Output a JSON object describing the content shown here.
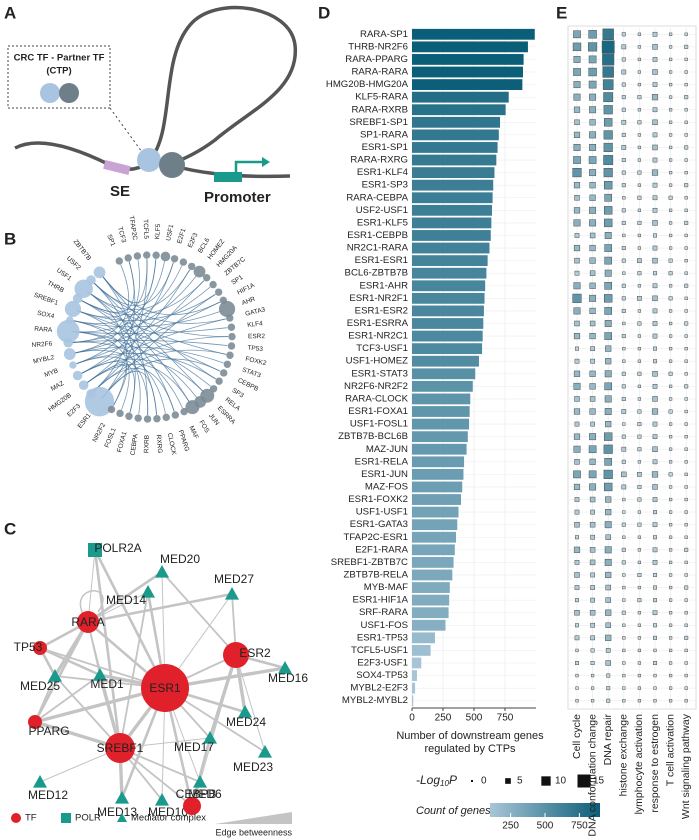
{
  "panel_labels": [
    "A",
    "B",
    "C",
    "D",
    "E"
  ],
  "panel_a": {
    "box_title": [
      "CRC TF - Partner TF",
      "(CTP)"
    ],
    "se_label": "SE",
    "promoter_label": "Promoter"
  },
  "panel_b": {
    "sources": [
      {
        "label": "ESR1",
        "size": 12
      },
      {
        "label": "E2F3",
        "size": 3
      },
      {
        "label": "HMG20B",
        "size": 3
      },
      {
        "label": "MAZ",
        "size": 3
      },
      {
        "label": "MYB",
        "size": 2
      },
      {
        "label": "MYBL2",
        "size": 4
      },
      {
        "label": "NR2F6",
        "size": 3
      },
      {
        "label": "RARA",
        "size": 9
      },
      {
        "label": "SOX4",
        "size": 2
      },
      {
        "label": "SREBF1",
        "size": 6
      },
      {
        "label": "THRB",
        "size": 3
      },
      {
        "label": "USF1",
        "size": 7
      },
      {
        "label": "USF2",
        "size": 3
      },
      {
        "label": "ZBTB7B",
        "size": 4
      }
    ],
    "targets": [
      {
        "label": "SP1",
        "size": 2
      },
      {
        "label": "TCF3",
        "size": 2
      },
      {
        "label": "TFAP2C",
        "size": 2
      },
      {
        "label": "TCFL5",
        "size": 2
      },
      {
        "label": "KLF5",
        "size": 2
      },
      {
        "label": "USF1",
        "size": 3
      },
      {
        "label": "E2F1",
        "size": 2
      },
      {
        "label": "E2F3",
        "size": 2
      },
      {
        "label": "BCL6",
        "size": 2
      },
      {
        "label": "HOMEZ",
        "size": 4
      },
      {
        "label": "HMG20A",
        "size": 2
      },
      {
        "label": "ZBTB7C",
        "size": 2
      },
      {
        "label": "SP1",
        "size": 2
      },
      {
        "label": "HIF1A",
        "size": 2
      },
      {
        "label": "AHR",
        "size": 6
      },
      {
        "label": "GATA3",
        "size": 2
      },
      {
        "label": "KLF4",
        "size": 2
      },
      {
        "label": "ESR2",
        "size": 2
      },
      {
        "label": "TP53",
        "size": 2
      },
      {
        "label": "FOXK2",
        "size": 2
      },
      {
        "label": "STAT3",
        "size": 2
      },
      {
        "label": "CEBPB",
        "size": 2
      },
      {
        "label": "SP3",
        "size": 2
      },
      {
        "label": "RELA",
        "size": 2
      },
      {
        "label": "ESRRA",
        "size": 5
      },
      {
        "label": "JUN",
        "size": 4
      },
      {
        "label": "FOS",
        "size": 5
      },
      {
        "label": "MAF",
        "size": 2
      },
      {
        "label": "PPARG",
        "size": 2
      },
      {
        "label": "CLOCK",
        "size": 2
      },
      {
        "label": "RXRG",
        "size": 2
      },
      {
        "label": "RXRB",
        "size": 2
      },
      {
        "label": "CEBPA",
        "size": 2
      },
      {
        "label": "FOXA1",
        "size": 2
      },
      {
        "label": "FOSL1",
        "size": 2
      },
      {
        "label": "NR2F2",
        "size": 2
      }
    ]
  },
  "panel_c": {
    "nodes": [
      {
        "label": "POLR2A",
        "group": 1
      },
      {
        "label": "MED20",
        "group": 2
      },
      {
        "label": "MED14",
        "group": 2
      },
      {
        "label": "MED27",
        "group": 2
      },
      {
        "label": "RARA",
        "group": 0
      },
      {
        "label": "TP53",
        "group": 0
      },
      {
        "label": "ESR2",
        "group": 0
      },
      {
        "label": "MED16",
        "group": 2
      },
      {
        "label": "MED25",
        "group": 2
      },
      {
        "label": "MED1",
        "group": 2
      },
      {
        "label": "ESR1",
        "group": 0
      },
      {
        "label": "MED24",
        "group": 2
      },
      {
        "label": "PPARG",
        "group": 0
      },
      {
        "label": "MED17",
        "group": 2
      },
      {
        "label": "SREBF1",
        "group": 0
      },
      {
        "label": "MED23",
        "group": 2
      },
      {
        "label": "MED12",
        "group": 2
      },
      {
        "label": "MED6",
        "group": 2
      },
      {
        "label": "MED13",
        "group": 2
      },
      {
        "label": "MED10",
        "group": 2
      },
      {
        "label": "CEBPB",
        "group": 0
      }
    ],
    "legend": [
      "TF",
      "POLR",
      "Mediator complex"
    ],
    "edge_legend": "Edge betweenness"
  },
  "chart_data": [
    {
      "type": "bar",
      "orientation": "horizontal",
      "categories": [
        "RARA-SP1",
        "THRB-NR2F6",
        "RARA-PPARG",
        "RARA-RARA",
        "HMG20B-HMG20A",
        "KLF5-RARA",
        "RARA-RXRB",
        "SREBF1-SP1",
        "SP1-RARA",
        "ESR1-SP1",
        "RARA-RXRG",
        "ESR1-KLF4",
        "ESR1-SP3",
        "RARA-CEBPA",
        "USF2-USF1",
        "ESR1-KLF5",
        "ESR1-CEBPB",
        "NR2C1-RARA",
        "ESR1-ESR1",
        "BCL6-ZBTB7B",
        "ESR1-AHR",
        "ESR1-NR2F1",
        "ESR1-ESR2",
        "ESR1-ESRRA",
        "ESR1-NR2C1",
        "TCF3-USF1",
        "USF1-HOMEZ",
        "ESR1-STAT3",
        "NR2F6-NR2F2",
        "RARA-CLOCK",
        "ESR1-FOXA1",
        "USF1-FOSL1",
        "ZBTB7B-BCL6B",
        "MAZ-JUN",
        "ESR1-RELA",
        "ESR1-JUN",
        "MAZ-FOS",
        "ESR1-FOXK2",
        "USF1-USF1",
        "ESR1-GATA3",
        "TFAP2C-ESR1",
        "E2F1-RARA",
        "SREBF1-ZBTB7C",
        "ZBTB7B-RELA",
        "MYB-MAF",
        "ESR1-HIF1A",
        "SRF-RARA",
        "USF1-FOS",
        "ESR1-TP53",
        "TCFL5-USF1",
        "E2F3-USF1",
        "SOX4-TP53",
        "MYBL2-E2F3",
        "MYBL2-MYBL2"
      ],
      "values": [
        990,
        935,
        900,
        895,
        890,
        780,
        755,
        710,
        700,
        690,
        680,
        665,
        655,
        650,
        645,
        640,
        635,
        625,
        610,
        600,
        590,
        585,
        580,
        575,
        570,
        565,
        540,
        510,
        490,
        470,
        465,
        460,
        450,
        440,
        420,
        415,
        405,
        395,
        375,
        365,
        355,
        345,
        335,
        325,
        305,
        300,
        295,
        270,
        185,
        150,
        75,
        40,
        25,
        10
      ],
      "xlim": [
        0,
        1000
      ],
      "xticks": [
        0,
        250,
        500,
        750
      ],
      "xlabel": [
        "Number of downstream genes",
        "regulated by CTPs"
      ],
      "colorbar": {
        "title": "Count of genes",
        "ticks": [
          250,
          500,
          750
        ],
        "range": [
          100,
          900
        ],
        "colors": [
          "#a8c5d7",
          "#0b5e78"
        ]
      }
    },
    {
      "type": "dotmatrix",
      "columns": [
        "Cell cycle",
        "DNA conformation change",
        "DNA repair",
        "histone exchange",
        "lymphocyte activation",
        "response to estrogen",
        "T cell activation",
        "Wnt signaling pathway"
      ],
      "values": [
        [
          7,
          8,
          12,
          2,
          1,
          3,
          1,
          1
        ],
        [
          8,
          9,
          14,
          3,
          1,
          4,
          1,
          2
        ],
        [
          6,
          7,
          13,
          2,
          1,
          3,
          1,
          1
        ],
        [
          7,
          8,
          12,
          3,
          1,
          4,
          1,
          1
        ],
        [
          6,
          7,
          11,
          2,
          1,
          3,
          1,
          1
        ],
        [
          6,
          6,
          10,
          2,
          2,
          5,
          1,
          2
        ],
        [
          5,
          6,
          9,
          2,
          1,
          3,
          1,
          1
        ],
        [
          4,
          5,
          8,
          3,
          2,
          4,
          1,
          1
        ],
        [
          5,
          6,
          9,
          2,
          1,
          3,
          1,
          1
        ],
        [
          6,
          6,
          9,
          3,
          1,
          4,
          1,
          2
        ],
        [
          7,
          7,
          10,
          2,
          1,
          3,
          1,
          1
        ],
        [
          9,
          6,
          9,
          2,
          2,
          5,
          1,
          1
        ],
        [
          5,
          5,
          8,
          2,
          1,
          3,
          1,
          2
        ],
        [
          4,
          5,
          7,
          1,
          2,
          3,
          2,
          1
        ],
        [
          5,
          6,
          8,
          2,
          1,
          3,
          1,
          1
        ],
        [
          6,
          6,
          8,
          2,
          2,
          4,
          1,
          2
        ],
        [
          3,
          4,
          6,
          1,
          1,
          2,
          1,
          1
        ],
        [
          5,
          5,
          7,
          2,
          1,
          3,
          1,
          1
        ],
        [
          4,
          5,
          7,
          2,
          3,
          4,
          2,
          1
        ],
        [
          3,
          4,
          6,
          1,
          2,
          2,
          2,
          1
        ],
        [
          6,
          5,
          7,
          2,
          1,
          3,
          1,
          2
        ],
        [
          9,
          6,
          8,
          2,
          3,
          4,
          2,
          1
        ],
        [
          6,
          5,
          7,
          2,
          1,
          3,
          1,
          1
        ],
        [
          4,
          4,
          6,
          1,
          2,
          3,
          1,
          2
        ],
        [
          5,
          5,
          7,
          2,
          1,
          3,
          1,
          1
        ],
        [
          2,
          3,
          5,
          1,
          1,
          2,
          1,
          1
        ],
        [
          3,
          3,
          5,
          1,
          1,
          2,
          1,
          1
        ],
        [
          5,
          5,
          6,
          2,
          2,
          4,
          2,
          1
        ],
        [
          6,
          5,
          7,
          2,
          1,
          3,
          1,
          2
        ],
        [
          4,
          4,
          6,
          2,
          1,
          4,
          1,
          1
        ],
        [
          5,
          5,
          6,
          3,
          2,
          5,
          2,
          1
        ],
        [
          3,
          3,
          5,
          1,
          2,
          3,
          1,
          1
        ],
        [
          5,
          6,
          8,
          2,
          2,
          3,
          1,
          1
        ],
        [
          6,
          7,
          9,
          3,
          2,
          4,
          1,
          1
        ],
        [
          4,
          5,
          7,
          2,
          1,
          3,
          1,
          1
        ],
        [
          7,
          7,
          9,
          4,
          3,
          5,
          2,
          1
        ],
        [
          5,
          6,
          8,
          3,
          2,
          4,
          1,
          1
        ],
        [
          3,
          4,
          5,
          1,
          2,
          3,
          1,
          1
        ],
        [
          3,
          3,
          5,
          1,
          1,
          2,
          1,
          1
        ],
        [
          4,
          4,
          6,
          2,
          2,
          3,
          1,
          1
        ],
        [
          2,
          3,
          4,
          1,
          1,
          2,
          1,
          1
        ],
        [
          5,
          4,
          6,
          2,
          1,
          3,
          1,
          2
        ],
        [
          3,
          4,
          6,
          2,
          1,
          3,
          1,
          1
        ],
        [
          4,
          3,
          5,
          1,
          2,
          2,
          1,
          1
        ],
        [
          3,
          3,
          4,
          1,
          1,
          2,
          1,
          2
        ],
        [
          2,
          3,
          4,
          1,
          2,
          2,
          1,
          1
        ],
        [
          4,
          4,
          5,
          2,
          1,
          3,
          1,
          1
        ],
        [
          2,
          3,
          4,
          1,
          1,
          2,
          1,
          1
        ],
        [
          3,
          3,
          5,
          1,
          1,
          2,
          1,
          2
        ],
        [
          1,
          2,
          3,
          1,
          1,
          1,
          1,
          1
        ],
        [
          2,
          2,
          4,
          1,
          1,
          2,
          1,
          1
        ],
        [
          1,
          1,
          2,
          1,
          1,
          1,
          1,
          1
        ],
        [
          1,
          1,
          2,
          1,
          1,
          1,
          1,
          1
        ],
        [
          1,
          1,
          2,
          1,
          1,
          1,
          1,
          1
        ]
      ],
      "size_legend": {
        "title": {
          "prefix": "-Log",
          "sub": "10",
          "suffix": "P"
        },
        "ticks": [
          0,
          5,
          10,
          15
        ]
      }
    }
  ]
}
